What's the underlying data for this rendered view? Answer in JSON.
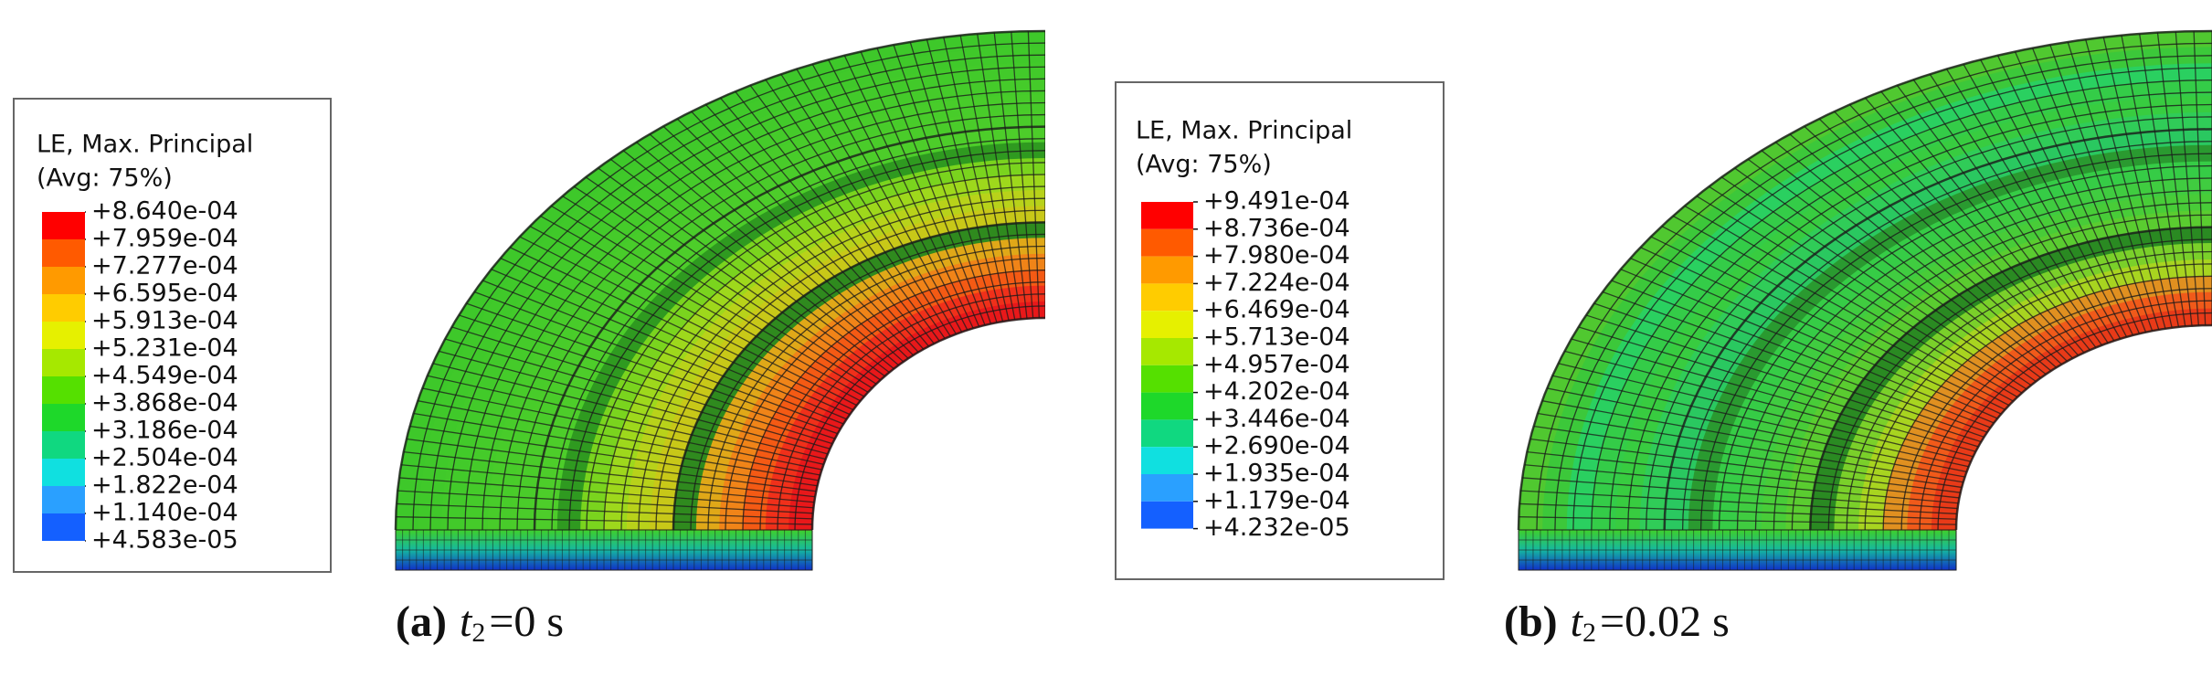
{
  "panels": [
    {
      "legend": {
        "title": "LE, Max. Principal",
        "subtitle": "(Avg: 75%)",
        "values": [
          "+8.640e-04",
          "+7.959e-04",
          "+7.277e-04",
          "+6.595e-04",
          "+5.913e-04",
          "+5.231e-04",
          "+4.549e-04",
          "+3.868e-04",
          "+3.186e-04",
          "+2.504e-04",
          "+1.822e-04",
          "+1.140e-04",
          "+4.583e-05"
        ]
      },
      "caption": {
        "label": "(a)",
        "variable": "t",
        "subscript": "2",
        "value": "=0 s"
      }
    },
    {
      "legend": {
        "title": "LE, Max. Principal",
        "subtitle": "(Avg: 75%)",
        "values": [
          "+9.491e-04",
          "+8.736e-04",
          "+7.980e-04",
          "+7.224e-04",
          "+6.469e-04",
          "+5.713e-04",
          "+4.957e-04",
          "+4.202e-04",
          "+3.446e-04",
          "+2.690e-04",
          "+1.935e-04",
          "+1.179e-04",
          "+4.232e-05"
        ]
      },
      "caption": {
        "label": "(b)",
        "variable": "t",
        "subscript": "2",
        "value": "=0.02 s"
      }
    }
  ]
}
